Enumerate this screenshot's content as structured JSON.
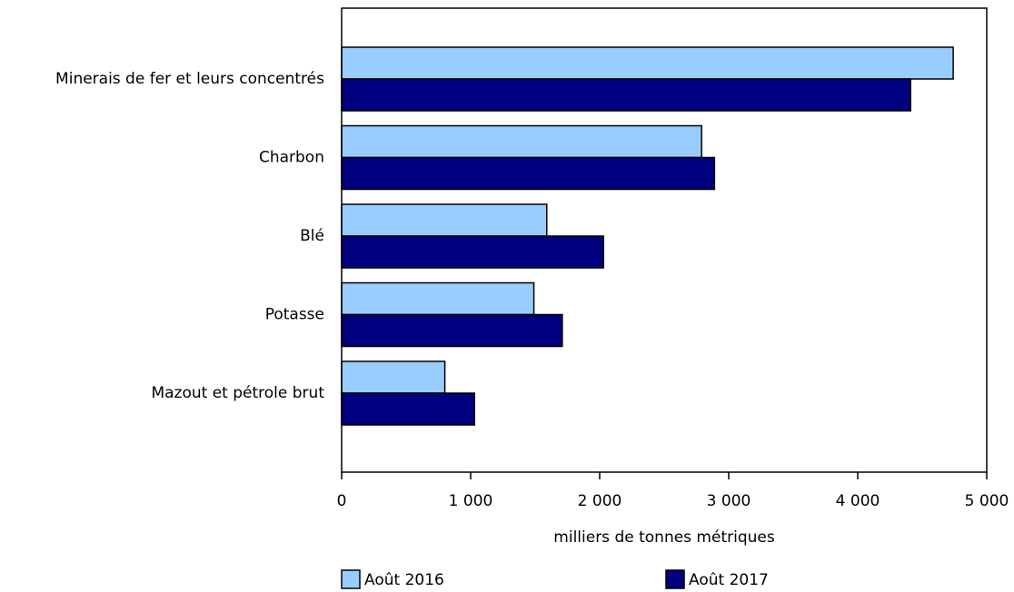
{
  "chart_data": {
    "type": "bar",
    "orientation": "horizontal",
    "categories": [
      "Minerais de fer et leurs concentrés",
      "Charbon",
      "Blé",
      "Potasse",
      "Mazout et pétrole brut"
    ],
    "series": [
      {
        "name": "Août 2016",
        "color": "#99ccff",
        "values": [
          4740,
          2790,
          1590,
          1490,
          800
        ]
      },
      {
        "name": "Août 2017",
        "color": "#000080",
        "values": [
          4410,
          2890,
          2030,
          1710,
          1030
        ]
      }
    ],
    "title": "",
    "xlabel": "milliers de tonnes métriques",
    "ylabel": "",
    "xlim": [
      0,
      5000
    ],
    "xticks": [
      0,
      1000,
      2000,
      3000,
      4000,
      5000
    ],
    "xtick_labels": [
      "0",
      "1 000",
      "2 000",
      "3 000",
      "4 000",
      "5 000"
    ],
    "grid": false,
    "legend_position": "bottom"
  }
}
